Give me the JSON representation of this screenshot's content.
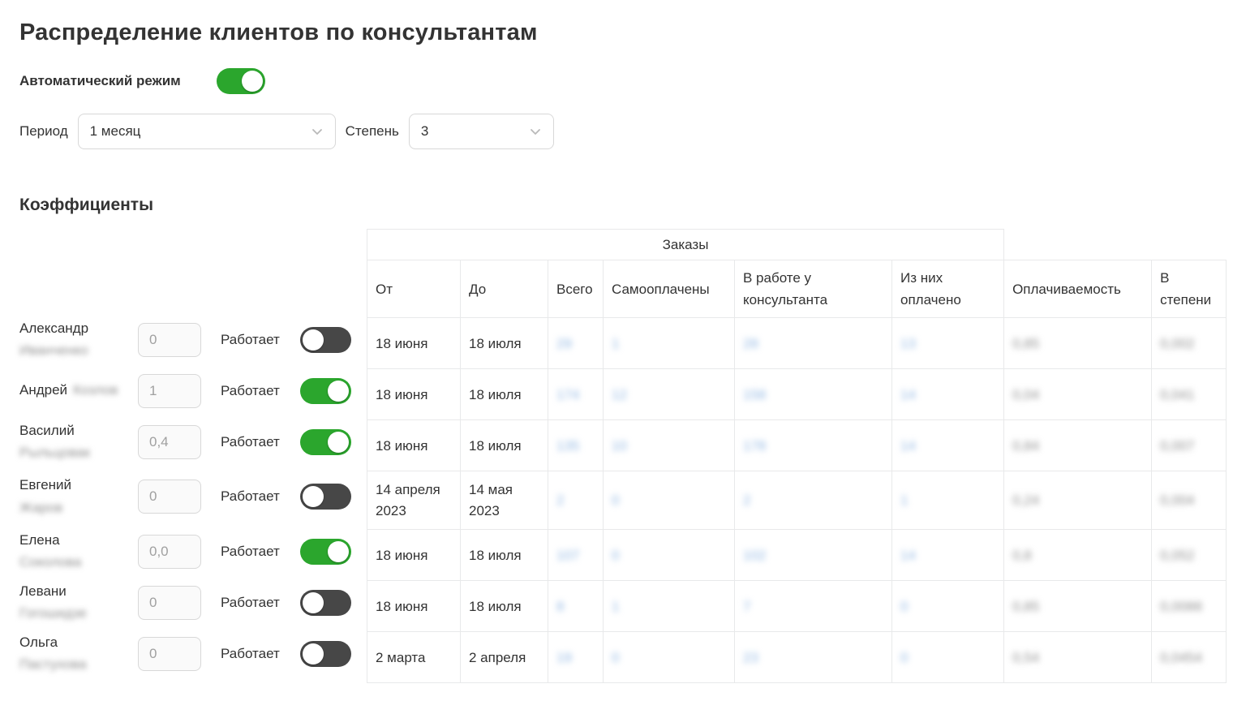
{
  "title": "Распределение клиентов по консультантам",
  "auto_mode": {
    "label": "Автоматический режим",
    "enabled": true
  },
  "controls": {
    "period_label": "Период",
    "period_value": "1 месяц",
    "degree_label": "Степень",
    "degree_value": "3"
  },
  "section_title": "Коэффициенты",
  "labels": {
    "works": "Работает"
  },
  "colors": {
    "accent_green": "#2BA62D",
    "toggle_off": "#474747",
    "blurred_link_blue": "#90B6E2",
    "blurred_text_gray": "#8F8F8F"
  },
  "consultants": [
    {
      "first_name": "Александр",
      "surname_placeholder_blurred": "Иванченко",
      "surname_inline": false,
      "coefficient": "0",
      "works": false
    },
    {
      "first_name": "Андрей",
      "surname_placeholder_blurred": "Козлов",
      "surname_inline": true,
      "coefficient": "1",
      "works": true
    },
    {
      "first_name": "Василий",
      "surname_placeholder_blurred": "Рыльцовак",
      "surname_inline": false,
      "coefficient": "0,4",
      "works": true
    },
    {
      "first_name": "Евгений",
      "surname_placeholder_blurred": "Жаров",
      "surname_inline": false,
      "coefficient": "0",
      "works": false
    },
    {
      "first_name": "Елена",
      "surname_placeholder_blurred": "Соколова",
      "surname_inline": false,
      "coefficient": "0,0",
      "works": true
    },
    {
      "first_name": "Левани",
      "surname_placeholder_blurred": "Гогошидзе",
      "surname_inline": false,
      "coefficient": "0",
      "works": false
    },
    {
      "first_name": "Ольга",
      "surname_placeholder_blurred": "Пастухова",
      "surname_inline": false,
      "coefficient": "0",
      "works": false
    }
  ],
  "table": {
    "group_header": "Заказы",
    "columns": [
      "От",
      "До",
      "Всего",
      "Самооплачены",
      "В работе у консультанта",
      "Из них оплачено",
      "Оплачиваемость",
      "В степени"
    ],
    "values_blurred": true,
    "rows": [
      {
        "from": "18 июня",
        "to": "18 июля",
        "total": "29",
        "self_paid": "1",
        "in_work": "28",
        "paid": "13",
        "payability": "0,85",
        "in_degree": "0,002"
      },
      {
        "from": "18 июня",
        "to": "18 июля",
        "total": "174",
        "self_paid": "12",
        "in_work": "158",
        "paid": "14",
        "payability": "0,04",
        "in_degree": "0,041"
      },
      {
        "from": "18 июня",
        "to": "18 июля",
        "total": "135",
        "self_paid": "10",
        "in_work": "178",
        "paid": "14",
        "payability": "0,84",
        "in_degree": "0,007"
      },
      {
        "from": "14 апреля 2023",
        "to": "14 мая 2023",
        "total": "2",
        "self_paid": "0",
        "in_work": "2",
        "paid": "1",
        "payability": "0,24",
        "in_degree": "0,004"
      },
      {
        "from": "18 июня",
        "to": "18 июля",
        "total": "107",
        "self_paid": "0",
        "in_work": "102",
        "paid": "14",
        "payability": "0,8",
        "in_degree": "0,052"
      },
      {
        "from": "18 июня",
        "to": "18 июля",
        "total": "8",
        "self_paid": "1",
        "in_work": "7",
        "paid": "0",
        "payability": "0,85",
        "in_degree": "0,0088"
      },
      {
        "from": "2 марта",
        "to": "2 апреля",
        "total": "19",
        "self_paid": "0",
        "in_work": "23",
        "paid": "0",
        "payability": "0,54",
        "in_degree": "0,0454"
      }
    ]
  }
}
